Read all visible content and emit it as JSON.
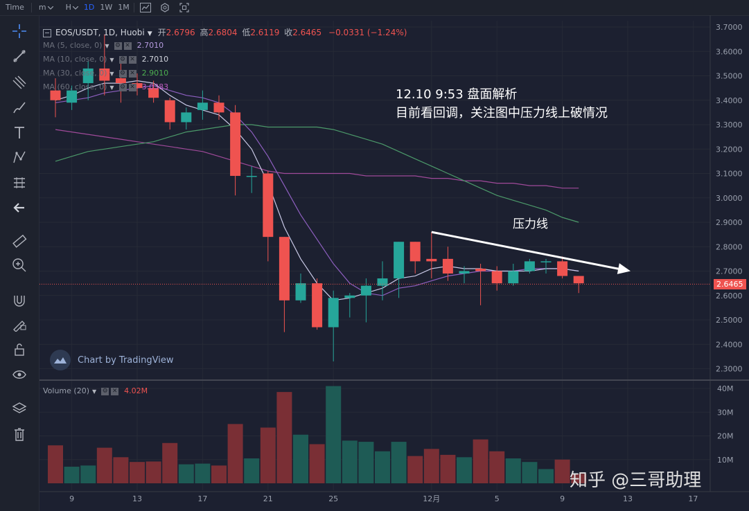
{
  "toolbar": {
    "items": [
      "Time",
      "m",
      "H",
      "1D",
      "1W",
      "1M"
    ],
    "active": "1D"
  },
  "legend": {
    "symbol": "EOS/USDT, 1D, Huobi",
    "open_label": "开",
    "open": "2.6796",
    "high_label": "高",
    "high": "2.6804",
    "low_label": "低",
    "low": "2.6119",
    "close_label": "收",
    "close": "2.6465",
    "change": "−0.0331 (−1.24%)",
    "ma5_label": "MA (5, close, 0)",
    "ma5_value": "2.7010",
    "ma10_label": "MA (10, close, 0)",
    "ma10_value": "2.7010",
    "ma30_label": "MA (30, close, 0)",
    "ma30_value": "2.9010",
    "ma60_label": "MA (60, close, 0)",
    "ma60_value": "3.0383",
    "volume_label": "Volume (20)",
    "volume_value": "4.02M"
  },
  "annotations": {
    "line1": "12.10 9:53 盘面解析",
    "line2": "目前看回调，关注图中压力线上破情况",
    "pressure": "压力线"
  },
  "last_price_tag": "2.6465",
  "tv_logo": "Chart by TradingView",
  "watermark": "知乎 @三哥助理",
  "colors": {
    "up": "#26a69a",
    "down": "#ef5350",
    "vol_up": "#1e5b55",
    "vol_down": "#7a2f35",
    "ma5": "#c9c9e6",
    "ma10": "#8e5fc0",
    "ma30": "#4c9a6a",
    "ma60": "#a04a9a"
  },
  "chart_data": {
    "type": "candlestick",
    "price_ticks": [
      "3.7000",
      "3.6000",
      "3.5000",
      "3.4000",
      "3.3000",
      "3.2000",
      "3.1000",
      "3.0000",
      "2.9000",
      "2.8000",
      "2.7000",
      "2.6000",
      "2.5000",
      "2.4000",
      "2.3000"
    ],
    "volume_ticks": [
      "40M",
      "30M",
      "20M",
      "10M"
    ],
    "x_ticks": [
      {
        "label": "9",
        "index": 1
      },
      {
        "label": "13",
        "index": 5
      },
      {
        "label": "17",
        "index": 9
      },
      {
        "label": "21",
        "index": 13
      },
      {
        "label": "25",
        "index": 17
      },
      {
        "label": "12月",
        "index": 23
      },
      {
        "label": "5",
        "index": 27
      },
      {
        "label": "9",
        "index": 31
      },
      {
        "label": "13",
        "index": 35
      },
      {
        "label": "17",
        "index": 39
      }
    ],
    "ylim": [
      2.25,
      3.75
    ],
    "volume_ylim": [
      0,
      42
    ],
    "candles": [
      {
        "o": 3.44,
        "h": 3.49,
        "l": 3.33,
        "c": 3.4,
        "v": 16
      },
      {
        "o": 3.39,
        "h": 3.46,
        "l": 3.36,
        "c": 3.44,
        "v": 7
      },
      {
        "o": 3.47,
        "h": 3.56,
        "l": 3.4,
        "c": 3.53,
        "v": 7.5
      },
      {
        "o": 3.53,
        "h": 3.67,
        "l": 3.42,
        "c": 3.48,
        "v": 15
      },
      {
        "o": 3.49,
        "h": 3.55,
        "l": 3.39,
        "c": 3.47,
        "v": 11
      },
      {
        "o": 3.47,
        "h": 3.51,
        "l": 3.42,
        "c": 3.45,
        "v": 9
      },
      {
        "o": 3.45,
        "h": 3.48,
        "l": 3.39,
        "c": 3.41,
        "v": 9.2
      },
      {
        "o": 3.4,
        "h": 3.41,
        "l": 3.28,
        "c": 3.31,
        "v": 17
      },
      {
        "o": 3.31,
        "h": 3.37,
        "l": 3.28,
        "c": 3.35,
        "v": 8
      },
      {
        "o": 3.36,
        "h": 3.44,
        "l": 3.32,
        "c": 3.39,
        "v": 8.3
      },
      {
        "o": 3.39,
        "h": 3.42,
        "l": 3.32,
        "c": 3.35,
        "v": 7.5
      },
      {
        "o": 3.35,
        "h": 3.38,
        "l": 3.01,
        "c": 3.09,
        "v": 25
      },
      {
        "o": 3.09,
        "h": 3.13,
        "l": 3.02,
        "c": 3.09,
        "v": 10.5
      },
      {
        "o": 3.1,
        "h": 3.11,
        "l": 2.74,
        "c": 2.84,
        "v": 23.5
      },
      {
        "o": 2.84,
        "h": 2.84,
        "l": 2.45,
        "c": 2.58,
        "v": 38.5
      },
      {
        "o": 2.58,
        "h": 2.69,
        "l": 2.57,
        "c": 2.65,
        "v": 20.5
      },
      {
        "o": 2.65,
        "h": 2.67,
        "l": 2.46,
        "c": 2.47,
        "v": 16.5
      },
      {
        "o": 2.47,
        "h": 2.62,
        "l": 2.33,
        "c": 2.59,
        "v": 41
      },
      {
        "o": 2.59,
        "h": 2.61,
        "l": 2.51,
        "c": 2.6,
        "v": 18
      },
      {
        "o": 2.6,
        "h": 2.67,
        "l": 2.49,
        "c": 2.64,
        "v": 17.5
      },
      {
        "o": 2.64,
        "h": 2.74,
        "l": 2.58,
        "c": 2.67,
        "v": 13.5
      },
      {
        "o": 2.67,
        "h": 2.82,
        "l": 2.59,
        "c": 2.82,
        "v": 17.5
      },
      {
        "o": 2.82,
        "h": 2.82,
        "l": 2.69,
        "c": 2.74,
        "v": 11.5
      },
      {
        "o": 2.75,
        "h": 2.86,
        "l": 2.67,
        "c": 2.74,
        "v": 14.5
      },
      {
        "o": 2.75,
        "h": 2.8,
        "l": 2.66,
        "c": 2.69,
        "v": 12
      },
      {
        "o": 2.69,
        "h": 2.72,
        "l": 2.65,
        "c": 2.7,
        "v": 11
      },
      {
        "o": 2.71,
        "h": 2.73,
        "l": 2.56,
        "c": 2.7,
        "v": 18.5
      },
      {
        "o": 2.7,
        "h": 2.72,
        "l": 2.62,
        "c": 2.65,
        "v": 13.5
      },
      {
        "o": 2.65,
        "h": 2.73,
        "l": 2.64,
        "c": 2.7,
        "v": 10.5
      },
      {
        "o": 2.7,
        "h": 2.75,
        "l": 2.69,
        "c": 2.74,
        "v": 9
      },
      {
        "o": 2.74,
        "h": 2.75,
        "l": 2.69,
        "c": 2.74,
        "v": 6
      },
      {
        "o": 2.74,
        "h": 2.76,
        "l": 2.67,
        "c": 2.68,
        "v": 10
      },
      {
        "o": 2.68,
        "h": 2.68,
        "l": 2.61,
        "c": 2.65,
        "v": 4
      }
    ],
    "ma5": [
      3.4,
      3.42,
      3.45,
      3.47,
      3.47,
      3.48,
      3.47,
      3.42,
      3.38,
      3.36,
      3.34,
      3.28,
      3.2,
      3.06,
      2.88,
      2.75,
      2.65,
      2.58,
      2.59,
      2.61,
      2.63,
      2.67,
      2.68,
      2.71,
      2.72,
      2.71,
      2.71,
      2.7,
      2.7,
      2.7,
      2.71,
      2.71,
      2.7
    ],
    "ma10": [
      3.39,
      3.4,
      3.41,
      3.43,
      3.44,
      3.45,
      3.46,
      3.44,
      3.42,
      3.41,
      3.39,
      3.34,
      3.27,
      3.17,
      3.05,
      2.93,
      2.83,
      2.73,
      2.65,
      2.61,
      2.6,
      2.63,
      2.64,
      2.66,
      2.68,
      2.69,
      2.7,
      2.7,
      2.7,
      2.71,
      2.71,
      2.71,
      2.7
    ],
    "ma30": [
      3.15,
      3.17,
      3.19,
      3.2,
      3.21,
      3.22,
      3.23,
      3.25,
      3.27,
      3.28,
      3.29,
      3.3,
      3.3,
      3.29,
      3.29,
      3.29,
      3.29,
      3.28,
      3.26,
      3.24,
      3.22,
      3.19,
      3.16,
      3.13,
      3.1,
      3.07,
      3.04,
      3.01,
      2.99,
      2.97,
      2.95,
      2.92,
      2.9
    ],
    "ma60": [
      3.28,
      3.27,
      3.26,
      3.25,
      3.24,
      3.23,
      3.22,
      3.21,
      3.2,
      3.19,
      3.17,
      3.15,
      3.13,
      3.11,
      3.1,
      3.1,
      3.1,
      3.1,
      3.1,
      3.09,
      3.09,
      3.09,
      3.09,
      3.08,
      3.08,
      3.07,
      3.07,
      3.06,
      3.06,
      3.05,
      3.05,
      3.04,
      3.04
    ],
    "last_price": 2.6465,
    "pressure_line": {
      "from": {
        "index": 23,
        "price": 2.86
      },
      "to": {
        "index": 35,
        "price": 2.7
      }
    }
  }
}
